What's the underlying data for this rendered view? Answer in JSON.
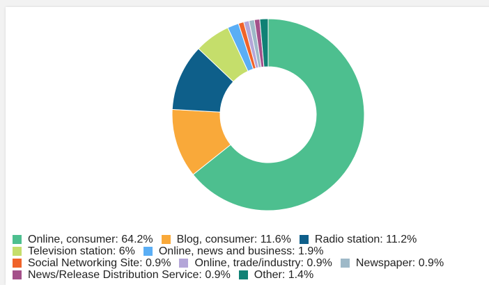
{
  "chart_data": {
    "type": "pie",
    "donut": true,
    "categories": [
      "Online, consumer",
      "Blog, consumer",
      "Radio station",
      "Television station",
      "Online, news and business",
      "Social Networking Site",
      "Online, trade/industry",
      "Newspaper",
      "News/Release Distribution Service",
      "Other"
    ],
    "values": [
      64.2,
      11.6,
      11.2,
      6,
      1.9,
      0.9,
      0.9,
      0.9,
      0.9,
      1.4
    ],
    "colors": [
      "#4dbf8f",
      "#f9a93a",
      "#0e5f8a",
      "#c5de6b",
      "#5aaef5",
      "#f0632a",
      "#b4a6d8",
      "#9eb9c8",
      "#a4508a",
      "#108175"
    ],
    "legend_labels": [
      "Online, consumer: 64.2%",
      "Blog, consumer: 11.6%",
      "Radio station: 11.2%",
      "Television station: 6%",
      "Online, news and business: 1.9%",
      "Social Networking Site: 0.9%",
      "Online, trade/industry: 0.9%",
      "Newspaper: 0.9%",
      "News/Release Distribution Service: 0.9%",
      "Other: 1.4%"
    ],
    "legend_rows": [
      [
        0,
        1,
        2
      ],
      [
        3,
        4
      ],
      [
        5,
        6,
        7
      ],
      [
        8,
        9
      ]
    ],
    "legend_position": "bottom",
    "start_angle_deg": 0,
    "direction": "clockwise"
  }
}
